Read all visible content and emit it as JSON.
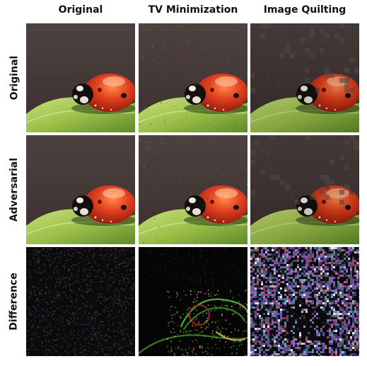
{
  "columns": [
    "Original",
    "TV Minimization",
    "Image Quilting"
  ],
  "rows": [
    "Original",
    "Adversarial",
    "Difference"
  ],
  "images": [
    [
      "ladybug-photo",
      "ladybug-tv",
      "ladybug-quilt"
    ],
    [
      "ladybug-photo",
      "ladybug-tv",
      "ladybug-quilt"
    ],
    [
      "diff-noise",
      "diff-edges",
      "diff-blocks"
    ]
  ],
  "colors": {
    "background_dark": "#4a3f3c",
    "ladybug_red": "#d8301c",
    "leaf_green": "#9fc24a"
  }
}
